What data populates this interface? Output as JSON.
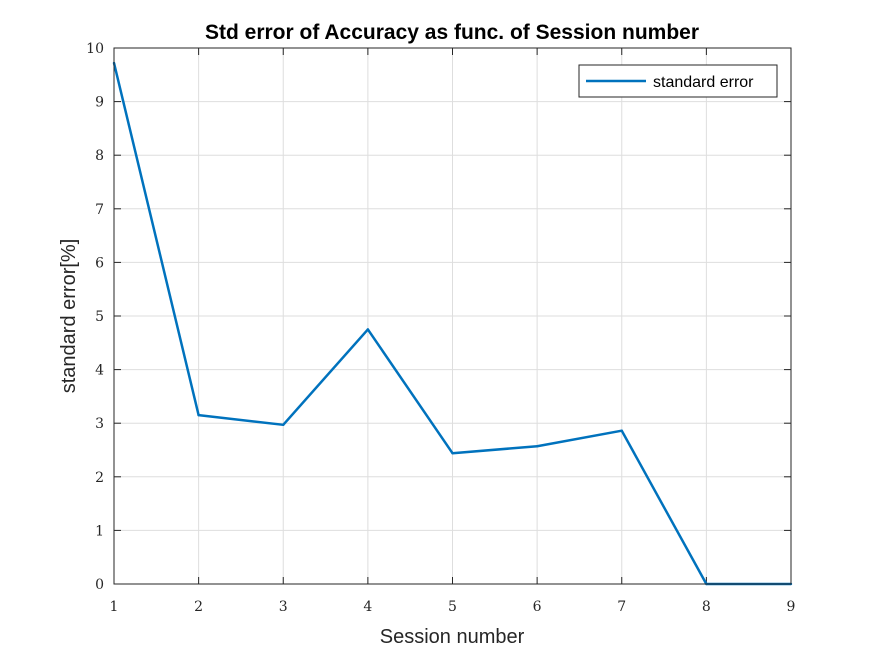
{
  "chart_data": {
    "type": "line",
    "title": "Std error of Accuracy as func. of Session number",
    "xlabel": "Session number",
    "ylabel": "standard error[%]",
    "xlim": [
      1,
      9
    ],
    "ylim": [
      0,
      10
    ],
    "xticks": [
      "1",
      "2",
      "3",
      "4",
      "5",
      "6",
      "7",
      "8",
      "9"
    ],
    "yticks": [
      "0",
      "1",
      "2",
      "3",
      "4",
      "5",
      "6",
      "7",
      "8",
      "9",
      "10"
    ],
    "grid": true,
    "legend_position": "top-right",
    "x": [
      1,
      2,
      3,
      4,
      5,
      6,
      7,
      8,
      9
    ],
    "series": [
      {
        "name": "standard error",
        "color": "#0072bd",
        "values": [
          9.72,
          3.15,
          2.97,
          4.75,
          2.44,
          2.57,
          2.86,
          0.0,
          0.0
        ]
      }
    ]
  }
}
